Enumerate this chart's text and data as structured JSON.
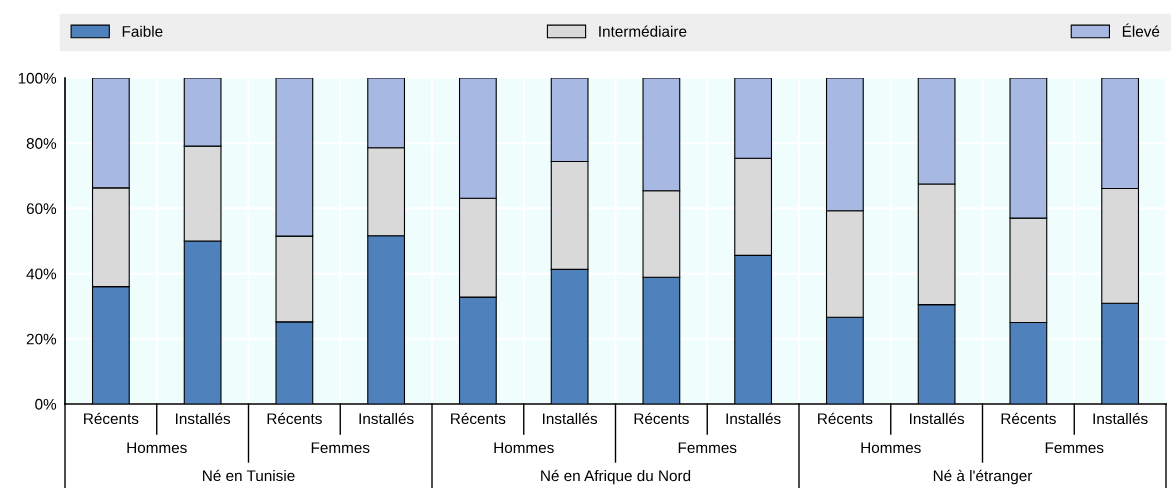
{
  "chart_data": {
    "type": "bar",
    "stacked": true,
    "categories": [
      "Récents",
      "Installés",
      "Récents",
      "Installés",
      "Récents",
      "Installés",
      "Récents",
      "Installés",
      "Récents",
      "Installés",
      "Récents",
      "Installés"
    ],
    "series": [
      {
        "name": "Faible",
        "color": "#4f81bd",
        "values": [
          36.0,
          50.0,
          25.2,
          51.6,
          32.8,
          41.3,
          38.9,
          45.6,
          26.6,
          30.5,
          25.0,
          30.9
        ]
      },
      {
        "name": "Intermédiaire",
        "color": "#d9d9d9",
        "values": [
          30.3,
          29.1,
          26.3,
          27.0,
          30.3,
          33.1,
          26.5,
          29.8,
          32.7,
          37.0,
          32.0,
          35.2
        ]
      },
      {
        "name": "Élevé",
        "color": "#a7b8e2",
        "values": [
          33.7,
          20.9,
          48.5,
          21.4,
          36.9,
          25.6,
          34.6,
          24.6,
          40.7,
          32.5,
          43.0,
          33.9
        ]
      }
    ],
    "annotations": [
      "Hommes",
      "Femmes",
      "Hommes",
      "Femmes",
      "Hommes",
      "Femmes",
      "Né en Tunisie",
      "Né en Afrique du Nord",
      "Né à l'étranger"
    ],
    "ylim": [
      0,
      100
    ],
    "yticks": [
      {
        "value": 0,
        "label": "0%"
      },
      {
        "value": 20,
        "label": "20%"
      },
      {
        "value": 40,
        "label": "40%"
      },
      {
        "value": 60,
        "label": "60%"
      },
      {
        "value": 80,
        "label": "80%"
      },
      {
        "value": 100,
        "label": "100%"
      }
    ],
    "grid": "y",
    "legend": "top"
  }
}
